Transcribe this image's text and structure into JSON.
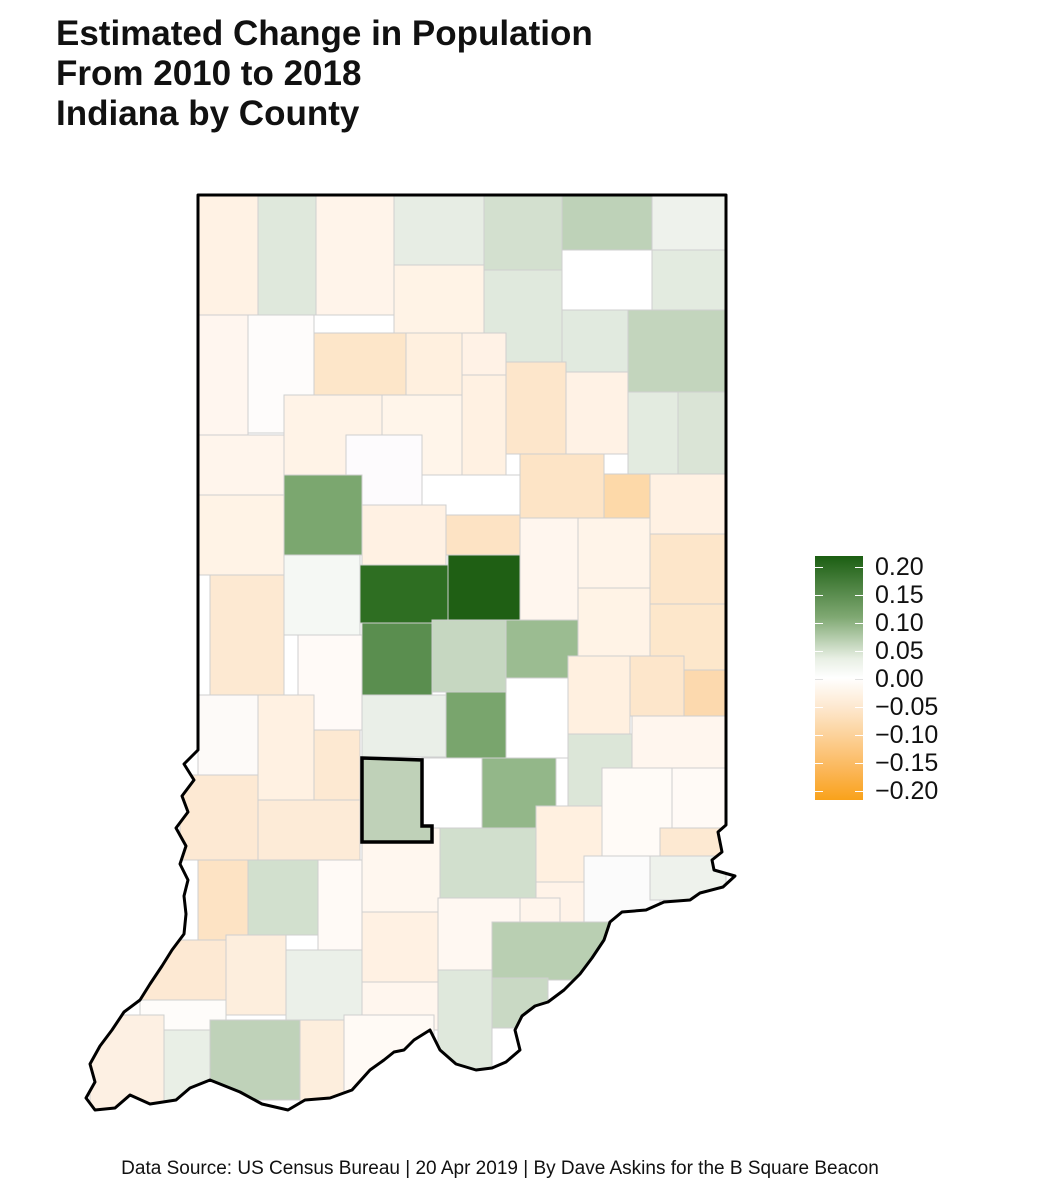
{
  "title": {
    "line1": "Estimated Change in Population",
    "line2": "From 2010 to 2018",
    "line3": "Indiana by County"
  },
  "legend": {
    "labels": [
      "0.20",
      "0.15",
      "0.10",
      "0.05",
      "0.00",
      "−0.05",
      "−0.10",
      "−0.15",
      "−0.20"
    ],
    "high_color": "#1b5e12",
    "mid_color": "#ffffff",
    "low_color": "#f9a21a"
  },
  "map": {
    "state": "Indiana",
    "highlighted_county_color": "#000000",
    "county_border_color": "#c8c8c8"
  },
  "caption": "Data Source: US Census Bureau | 20 Apr 2019 | By Dave Askins for the B Square Beacon"
}
